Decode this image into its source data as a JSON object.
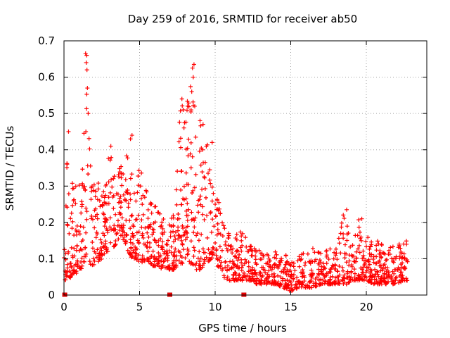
{
  "chart_data": {
    "type": "scatter",
    "title": "Day 259 of 2016, SRMTID for receiver ab50",
    "xlabel": "GPS time / hours",
    "ylabel": "SRMTID / TECUs",
    "xlim": [
      0,
      24
    ],
    "ylim": [
      0,
      0.7
    ],
    "xticks": [
      0,
      5,
      10,
      15,
      20
    ],
    "yticks": [
      0,
      0.1,
      0.2,
      0.3,
      0.4,
      0.5,
      0.6,
      0.7
    ],
    "xtick_labels": [
      "0",
      "5",
      "10",
      "15",
      "20"
    ],
    "ytick_labels": [
      "0",
      "0.1",
      "0.2",
      "0.3",
      "0.4",
      "0.5",
      "0.6",
      "0.7"
    ],
    "grid": true,
    "marker": "plus",
    "color": "#ff0000",
    "zero_markers_x": [
      0.05,
      7.0,
      11.9
    ],
    "envelope": {
      "x": [
        0.0,
        0.25,
        0.5,
        0.75,
        1.0,
        1.25,
        1.4,
        1.6,
        1.8,
        2.0,
        2.25,
        2.5,
        2.75,
        3.0,
        3.25,
        3.5,
        3.75,
        4.0,
        4.25,
        4.5,
        4.75,
        5.0,
        5.25,
        5.5,
        5.75,
        6.0,
        6.25,
        6.5,
        6.75,
        7.0,
        7.25,
        7.5,
        7.75,
        8.0,
        8.25,
        8.5,
        8.75,
        9.0,
        9.25,
        9.5,
        9.75,
        10.0,
        10.25,
        10.5,
        10.75,
        11.0,
        11.25,
        11.5,
        11.75,
        12.0,
        12.25,
        12.5,
        12.75,
        13.0,
        13.5,
        14.0,
        14.5,
        15.0,
        15.5,
        16.0,
        16.5,
        17.0,
        17.5,
        18.0,
        18.5,
        18.75,
        19.0,
        19.5,
        19.75,
        20.0,
        20.5,
        21.0,
        21.5,
        21.75,
        22.0,
        22.5,
        22.75
      ],
      "low": [
        0.04,
        0.04,
        0.05,
        0.06,
        0.06,
        0.08,
        0.1,
        0.1,
        0.08,
        0.08,
        0.09,
        0.1,
        0.12,
        0.12,
        0.13,
        0.14,
        0.16,
        0.14,
        0.12,
        0.1,
        0.1,
        0.09,
        0.09,
        0.1,
        0.08,
        0.08,
        0.08,
        0.07,
        0.07,
        0.07,
        0.07,
        0.08,
        0.08,
        0.09,
        0.09,
        0.08,
        0.07,
        0.07,
        0.08,
        0.09,
        0.1,
        0.1,
        0.07,
        0.05,
        0.04,
        0.04,
        0.04,
        0.04,
        0.04,
        0.04,
        0.04,
        0.04,
        0.03,
        0.03,
        0.03,
        0.03,
        0.02,
        0.01,
        0.02,
        0.02,
        0.02,
        0.03,
        0.03,
        0.03,
        0.03,
        0.03,
        0.04,
        0.04,
        0.04,
        0.04,
        0.03,
        0.03,
        0.03,
        0.03,
        0.03,
        0.04,
        0.04
      ],
      "high": [
        0.2,
        0.45,
        0.32,
        0.3,
        0.3,
        0.36,
        0.66,
        0.5,
        0.33,
        0.31,
        0.32,
        0.3,
        0.3,
        0.41,
        0.35,
        0.33,
        0.37,
        0.33,
        0.44,
        0.36,
        0.29,
        0.36,
        0.33,
        0.3,
        0.27,
        0.25,
        0.24,
        0.22,
        0.2,
        0.22,
        0.24,
        0.41,
        0.54,
        0.48,
        0.59,
        0.63,
        0.42,
        0.47,
        0.45,
        0.42,
        0.32,
        0.3,
        0.27,
        0.21,
        0.2,
        0.16,
        0.14,
        0.19,
        0.2,
        0.16,
        0.14,
        0.13,
        0.13,
        0.12,
        0.12,
        0.12,
        0.13,
        0.1,
        0.11,
        0.12,
        0.13,
        0.12,
        0.13,
        0.14,
        0.23,
        0.19,
        0.13,
        0.21,
        0.14,
        0.17,
        0.16,
        0.14,
        0.15,
        0.14,
        0.13,
        0.17,
        0.17
      ]
    },
    "highlight_points": [
      {
        "x": 1.43,
        "y": 0.665
      },
      {
        "x": 1.5,
        "y": 0.66
      },
      {
        "x": 1.47,
        "y": 0.64
      },
      {
        "x": 1.52,
        "y": 0.62
      },
      {
        "x": 1.55,
        "y": 0.57
      },
      {
        "x": 1.6,
        "y": 0.5
      },
      {
        "x": 1.45,
        "y": 0.45
      },
      {
        "x": 0.3,
        "y": 0.45
      },
      {
        "x": 8.6,
        "y": 0.635
      },
      {
        "x": 8.5,
        "y": 0.625
      },
      {
        "x": 8.55,
        "y": 0.6
      },
      {
        "x": 8.45,
        "y": 0.56
      },
      {
        "x": 8.65,
        "y": 0.52
      },
      {
        "x": 7.8,
        "y": 0.54
      },
      {
        "x": 7.9,
        "y": 0.51
      },
      {
        "x": 9.2,
        "y": 0.47
      },
      {
        "x": 9.0,
        "y": 0.48
      },
      {
        "x": 4.5,
        "y": 0.44
      },
      {
        "x": 4.4,
        "y": 0.43
      },
      {
        "x": 3.1,
        "y": 0.41
      },
      {
        "x": 18.7,
        "y": 0.235
      },
      {
        "x": 19.7,
        "y": 0.21
      },
      {
        "x": 9.8,
        "y": 0.42
      }
    ]
  }
}
